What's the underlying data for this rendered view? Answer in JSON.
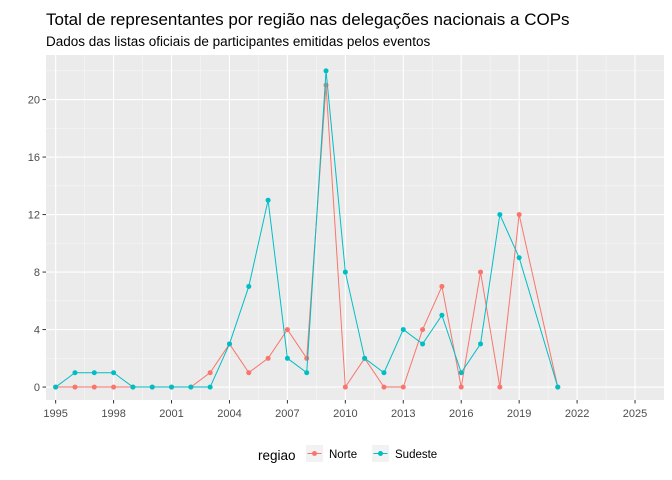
{
  "chart_data": {
    "type": "line",
    "title": "Total de representantes por região nas delegações nacionais a COPs",
    "subtitle": "Dados das listas oficiais de participantes emitidas pelos eventos",
    "xlim": [
      1994.5,
      2026.5
    ],
    "ylim": [
      -0.9,
      23.1
    ],
    "x_ticks": [
      1995,
      1998,
      2001,
      2004,
      2007,
      2010,
      2013,
      2016,
      2019,
      2022,
      2025
    ],
    "y_ticks": [
      0,
      4,
      8,
      12,
      16,
      20
    ],
    "grid": true,
    "legend": {
      "title": "regiao",
      "position": "bottom"
    },
    "series": [
      {
        "name": "Norte",
        "color": "#F8766D",
        "x": [
          1995,
          1996,
          1997,
          1998,
          1999,
          2000,
          2001,
          2002,
          2003,
          2004,
          2005,
          2006,
          2007,
          2008,
          2009,
          2010,
          2011,
          2012,
          2013,
          2014,
          2015,
          2016,
          2017,
          2018,
          2019,
          2021
        ],
        "y": [
          0,
          0,
          0,
          0,
          0,
          0,
          0,
          0,
          1,
          3,
          1,
          2,
          4,
          2,
          21,
          0,
          2,
          0,
          0,
          4,
          7,
          0,
          8,
          0,
          12,
          0
        ]
      },
      {
        "name": "Sudeste",
        "color": "#00BFC4",
        "x": [
          1995,
          1996,
          1997,
          1998,
          1999,
          2000,
          2001,
          2002,
          2003,
          2004,
          2005,
          2006,
          2007,
          2008,
          2009,
          2010,
          2011,
          2012,
          2013,
          2014,
          2015,
          2016,
          2017,
          2018,
          2019,
          2021
        ],
        "y": [
          0,
          1,
          1,
          1,
          0,
          0,
          0,
          0,
          0,
          3,
          7,
          13,
          2,
          1,
          22,
          8,
          2,
          1,
          4,
          3,
          5,
          1,
          3,
          12,
          9,
          0
        ]
      }
    ]
  }
}
